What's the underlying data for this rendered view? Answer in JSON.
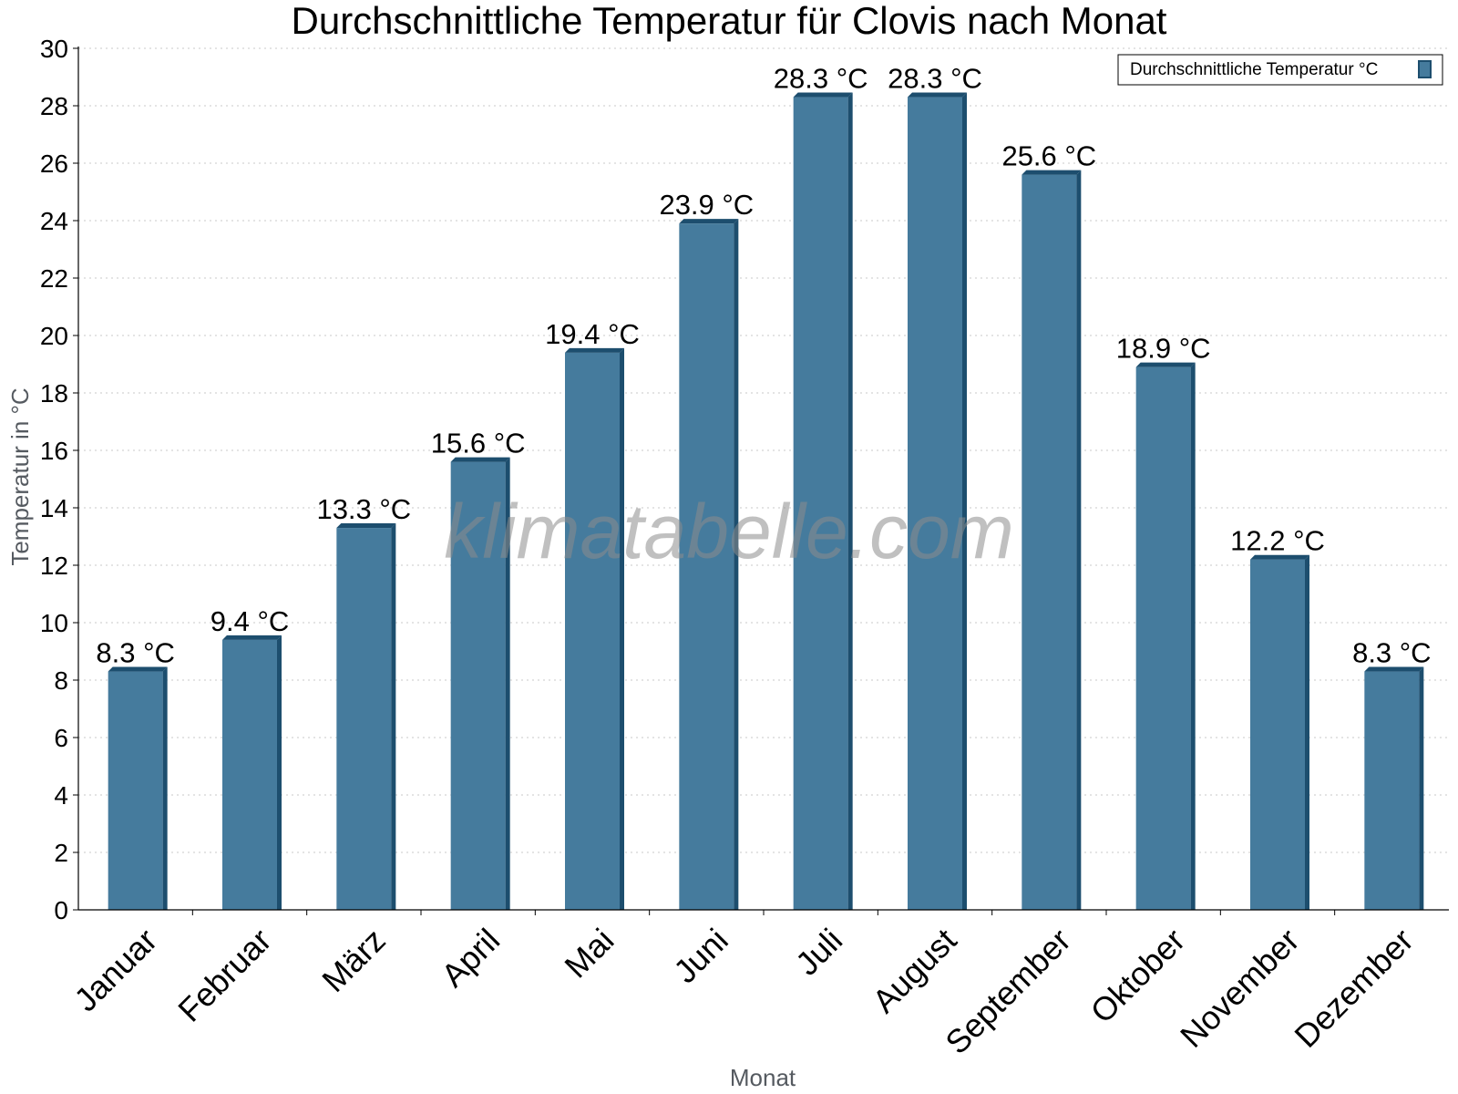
{
  "chart_data": {
    "type": "bar",
    "title": "Durchschnittliche Temperatur für Clovis nach Monat",
    "xlabel": "Monat",
    "ylabel": "Temperatur in °C",
    "categories": [
      "Januar",
      "Februar",
      "März",
      "April",
      "Mai",
      "Juni",
      "Juli",
      "August",
      "September",
      "Oktober",
      "November",
      "Dezember"
    ],
    "series": [
      {
        "name": "Durchschnittliche Temperatur °C",
        "values": [
          8.3,
          9.4,
          13.3,
          15.6,
          19.4,
          23.9,
          28.3,
          28.3,
          25.6,
          18.9,
          12.2,
          8.3
        ],
        "labels": [
          "8.3 °C",
          "9.4 °C",
          "13.3 °C",
          "15.6 °C",
          "19.4 °C",
          "23.9 °C",
          "28.3 °C",
          "28.3 °C",
          "25.6 °C",
          "18.9 °C",
          "12.2 °C",
          "8.3 °C"
        ],
        "color": "#457b9d",
        "edge_color": "#1d4e6e"
      }
    ],
    "ylim": [
      0,
      30
    ],
    "yticks": [
      "0",
      "2",
      "4",
      "6",
      "8",
      "10",
      "12",
      "14",
      "16",
      "18",
      "20",
      "22",
      "24",
      "26",
      "28",
      "30"
    ],
    "grid": true,
    "legend_position": "top-right"
  },
  "watermark": "klimatabelle.com"
}
